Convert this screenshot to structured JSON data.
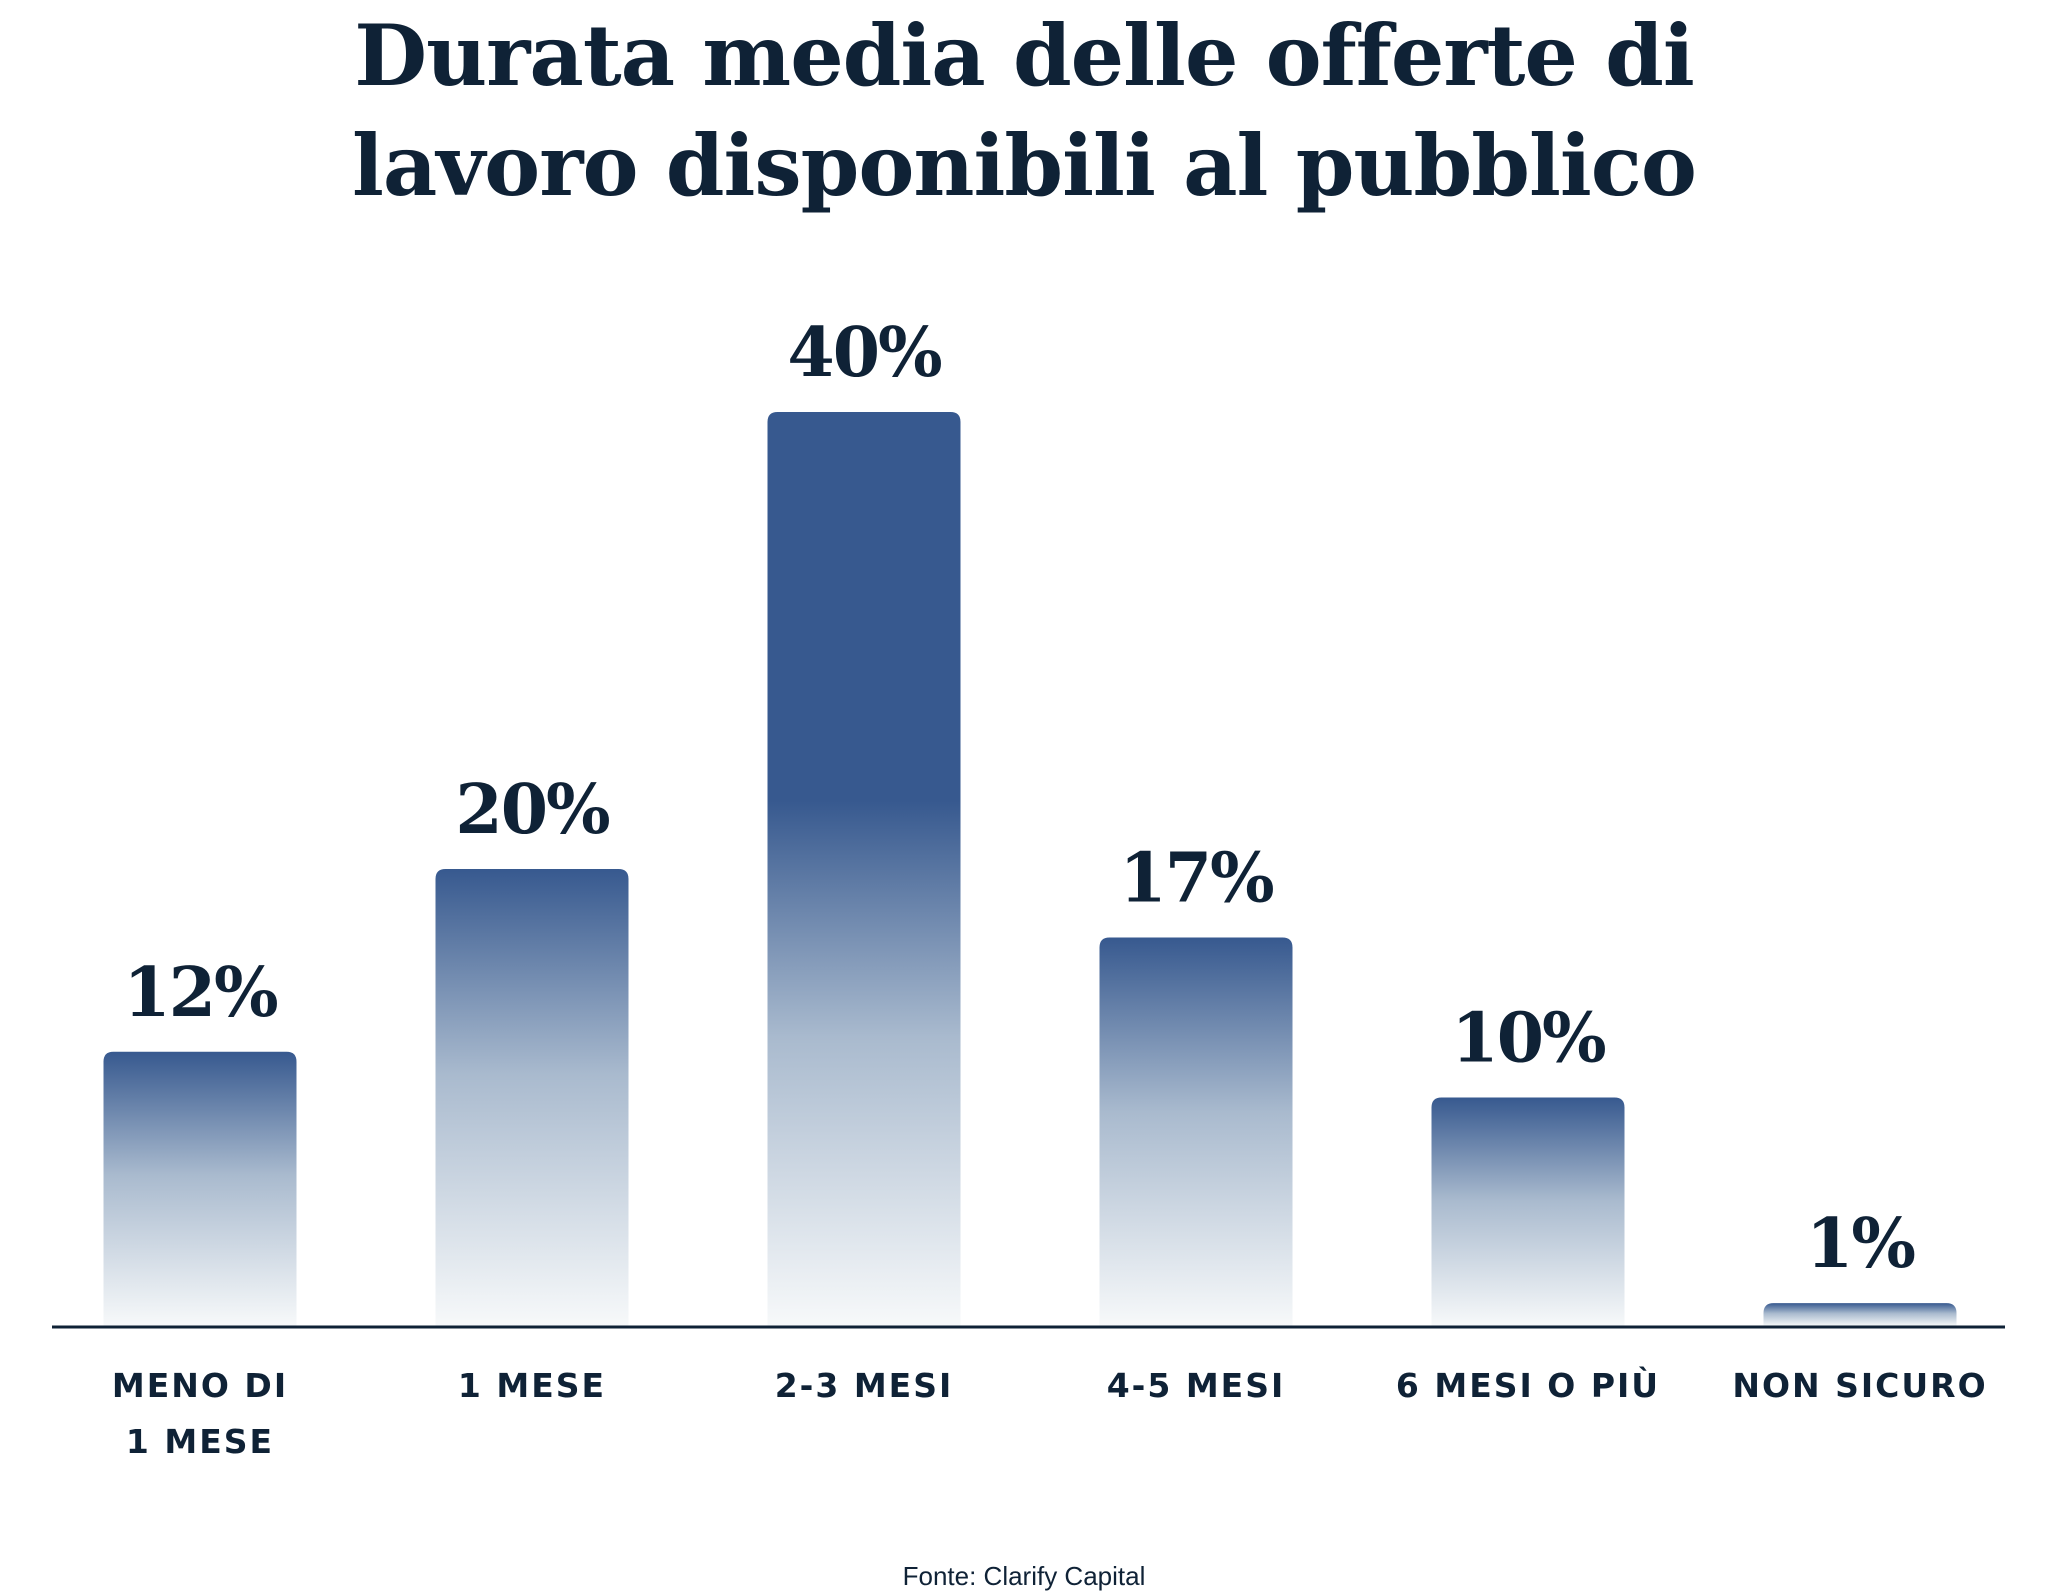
{
  "chart_data": {
    "type": "bar",
    "title": [
      "Durata media delle offerte di",
      "lavoro disponibili al pubblico"
    ],
    "categories": [
      [
        "MENO DI",
        "1 MESE"
      ],
      [
        "1 MESE"
      ],
      [
        "2-3 MESI"
      ],
      [
        "4-5 MESI"
      ],
      [
        "6 MESI O PIÙ"
      ],
      [
        "NON SICURO"
      ]
    ],
    "values": [
      12,
      20,
      40,
      17,
      10,
      1
    ],
    "value_labels": [
      "12%",
      "20%",
      "40%",
      "17%",
      "10%",
      "1%"
    ],
    "unit": "%",
    "xlabel": "",
    "ylabel": "",
    "ylim": [
      0,
      40
    ],
    "grid": false,
    "legend": "none",
    "source": "Fonte: Clarify Capital",
    "colors": {
      "bar_top": "#37598f",
      "bar_bottom": "#f7f9fa",
      "text": "#0f2236",
      "axis": "#0f2236"
    }
  }
}
